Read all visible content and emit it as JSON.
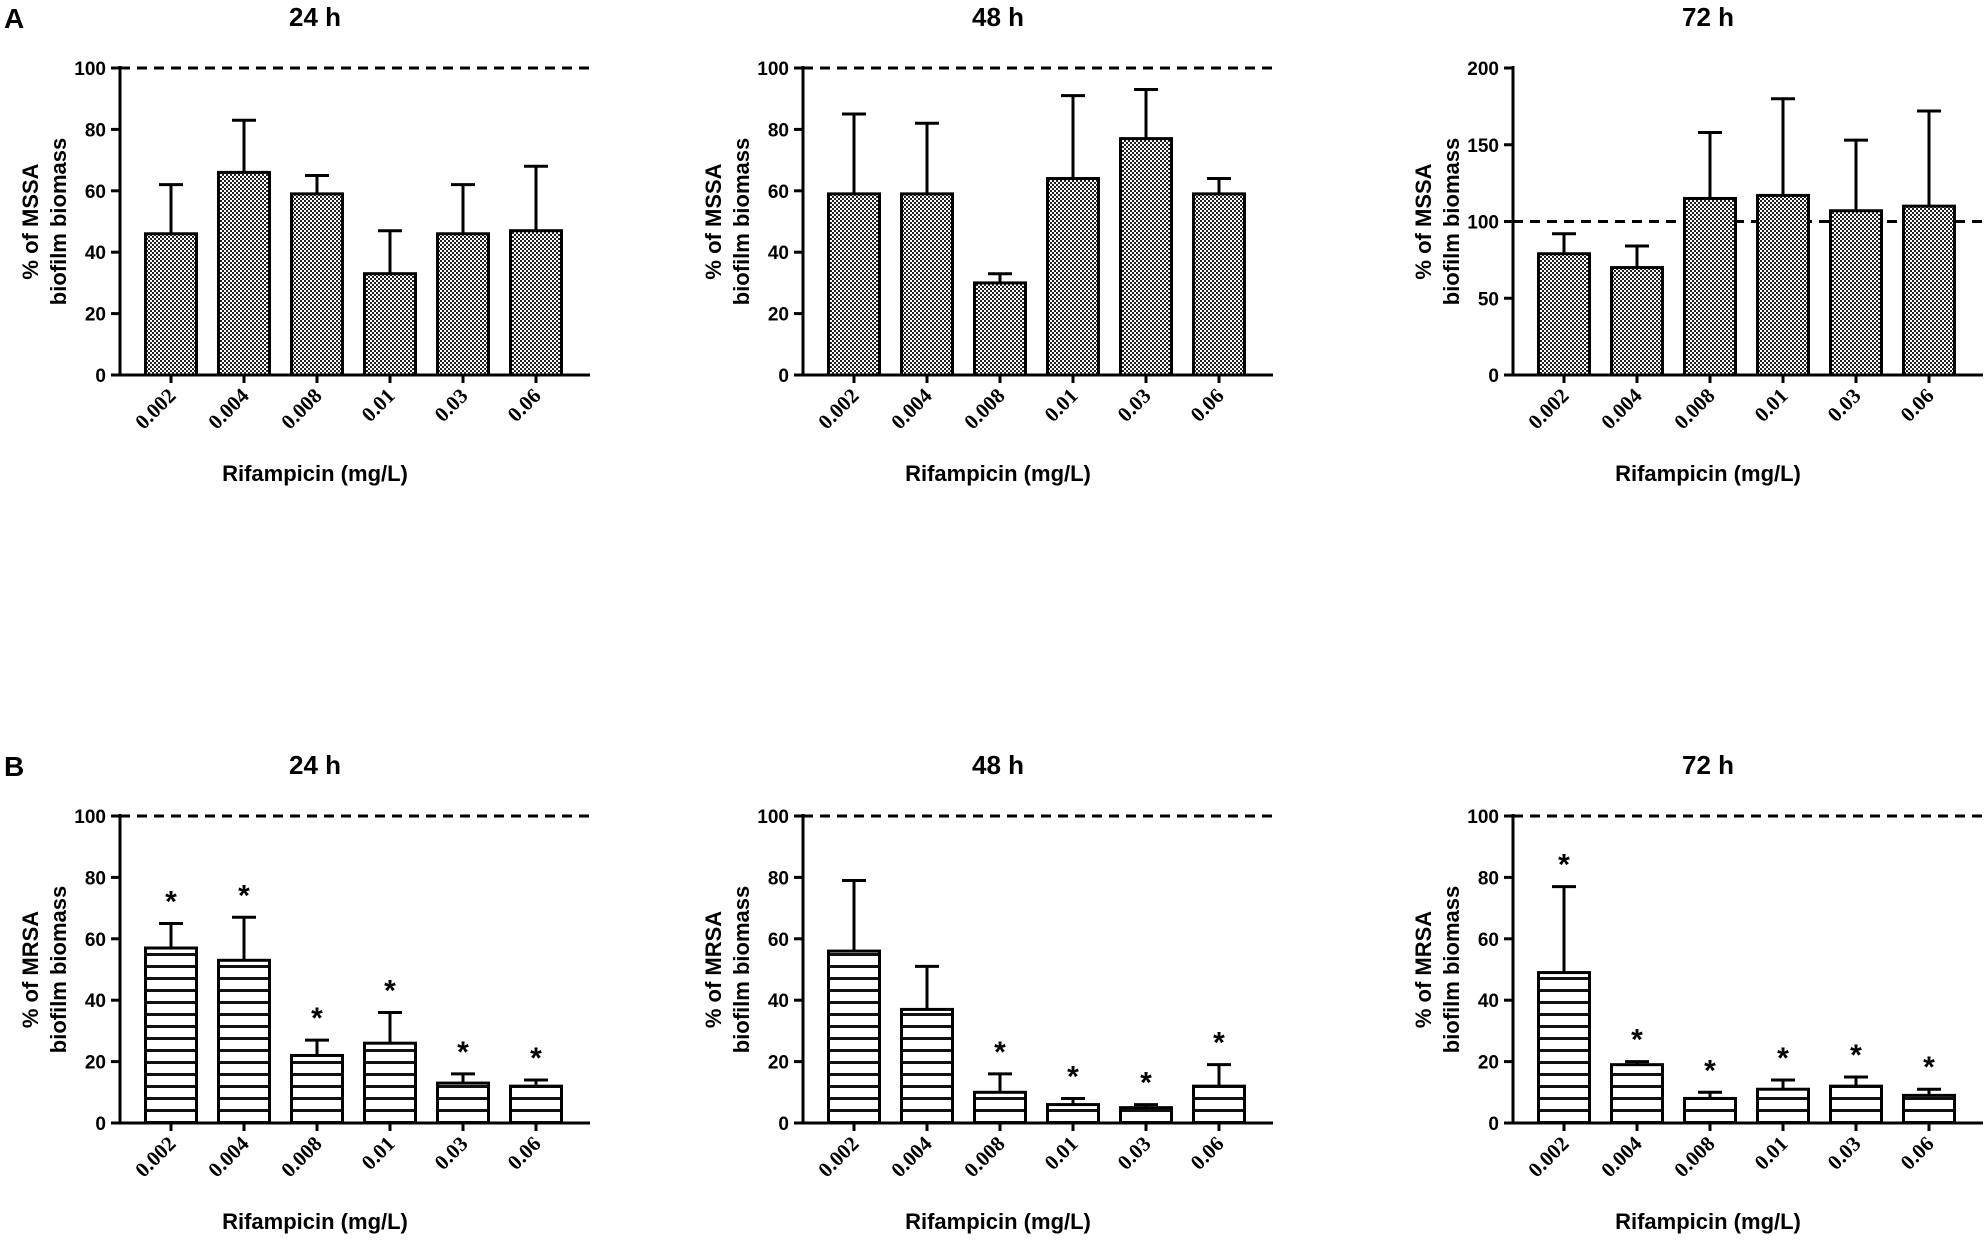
{
  "rows": [
    {
      "letter": "A"
    },
    {
      "letter": "B"
    }
  ],
  "chart_data": [
    {
      "type": "bar",
      "row": 0,
      "col": 0,
      "pattern": "checker",
      "title": "24 h",
      "xlabel": "Rifampicin (mg/L)",
      "ylabel_lines": [
        "% of MSSA",
        "biofilm biomass"
      ],
      "categories": [
        "0.002",
        "0.004",
        "0.008",
        "0.01",
        "0.03",
        "0.06"
      ],
      "values": [
        46,
        66,
        59,
        33,
        46,
        47
      ],
      "errors": [
        16,
        17,
        6,
        14,
        16,
        21
      ],
      "significant": [
        false,
        false,
        false,
        false,
        false,
        false
      ],
      "ylim": [
        0,
        100
      ],
      "yticks": [
        0,
        20,
        40,
        60,
        80,
        100
      ],
      "reference_line": 100
    },
    {
      "type": "bar",
      "row": 0,
      "col": 1,
      "pattern": "checker",
      "title": "48 h",
      "xlabel": "Rifampicin (mg/L)",
      "ylabel_lines": [
        "% of MSSA",
        "biofilm biomass"
      ],
      "categories": [
        "0.002",
        "0.004",
        "0.008",
        "0.01",
        "0.03",
        "0.06"
      ],
      "values": [
        59,
        59,
        30,
        64,
        77,
        59
      ],
      "errors": [
        26,
        23,
        3,
        27,
        16,
        5
      ],
      "significant": [
        false,
        false,
        false,
        false,
        false,
        false
      ],
      "ylim": [
        0,
        100
      ],
      "yticks": [
        0,
        20,
        40,
        60,
        80,
        100
      ],
      "reference_line": 100
    },
    {
      "type": "bar",
      "row": 0,
      "col": 2,
      "pattern": "checker",
      "title": "72 h",
      "xlabel": "Rifampicin (mg/L)",
      "ylabel_lines": [
        "% of MSSA",
        "biofilm biomass"
      ],
      "categories": [
        "0.002",
        "0.004",
        "0.008",
        "0.01",
        "0.03",
        "0.06"
      ],
      "values": [
        79,
        70,
        115,
        117,
        107,
        110
      ],
      "errors": [
        13,
        14,
        43,
        63,
        46,
        62
      ],
      "significant": [
        false,
        false,
        false,
        false,
        false,
        false
      ],
      "ylim": [
        0,
        200
      ],
      "yticks": [
        0,
        50,
        100,
        150,
        200
      ],
      "reference_line": 100
    },
    {
      "type": "bar",
      "row": 1,
      "col": 0,
      "pattern": "stripes",
      "title": "24 h",
      "xlabel": "Rifampicin (mg/L)",
      "ylabel_lines": [
        "% of MRSA",
        "biofilm biomass"
      ],
      "categories": [
        "0.002",
        "0.004",
        "0.008",
        "0.01",
        "0.03",
        "0.06"
      ],
      "values": [
        57,
        53,
        22,
        26,
        13,
        12
      ],
      "errors": [
        8,
        14,
        5,
        10,
        3,
        2
      ],
      "significant": [
        true,
        true,
        true,
        true,
        true,
        true
      ],
      "ylim": [
        0,
        100
      ],
      "yticks": [
        0,
        20,
        40,
        60,
        80,
        100
      ],
      "reference_line": 100
    },
    {
      "type": "bar",
      "row": 1,
      "col": 1,
      "pattern": "stripes",
      "title": "48 h",
      "xlabel": "Rifampicin (mg/L)",
      "ylabel_lines": [
        "% of MRSA",
        "biofilm biomass"
      ],
      "categories": [
        "0.002",
        "0.004",
        "0.008",
        "0.01",
        "0.03",
        "0.06"
      ],
      "values": [
        56,
        37,
        10,
        6,
        5,
        12
      ],
      "errors": [
        23,
        14,
        6,
        2,
        1,
        7
      ],
      "significant": [
        false,
        false,
        true,
        true,
        true,
        true
      ],
      "ylim": [
        0,
        100
      ],
      "yticks": [
        0,
        20,
        40,
        60,
        80,
        100
      ],
      "reference_line": 100
    },
    {
      "type": "bar",
      "row": 1,
      "col": 2,
      "pattern": "stripes",
      "title": "72 h",
      "xlabel": "Rifampicin (mg/L)",
      "ylabel_lines": [
        "% of MRSA",
        "biofilm biomass"
      ],
      "categories": [
        "0.002",
        "0.004",
        "0.008",
        "0.01",
        "0.03",
        "0.06"
      ],
      "values": [
        49,
        19,
        8,
        11,
        12,
        9
      ],
      "errors": [
        28,
        1,
        2,
        3,
        3,
        2
      ],
      "significant": [
        true,
        true,
        true,
        true,
        true,
        true
      ],
      "ylim": [
        0,
        100
      ],
      "yticks": [
        0,
        20,
        40,
        60,
        80,
        100
      ],
      "reference_line": 100
    }
  ]
}
